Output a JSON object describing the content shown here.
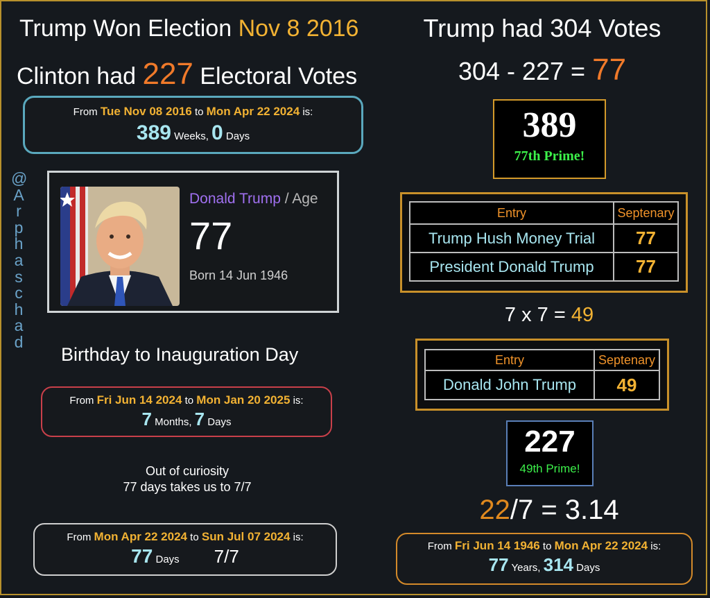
{
  "left": {
    "title1_prefix": "Trump Won Election ",
    "title1_date": "Nov 8 2016",
    "title2_prefix": "Clinton had ",
    "title2_num": "227",
    "title2_suffix": " Electoral Votes",
    "box1": {
      "from": "From ",
      "d1": "Tue Nov 08 2016",
      "to": " to ",
      "d2": "Mon Apr 22 2024",
      "is": " is:",
      "n1": "389",
      "u1": " Weeks, ",
      "n2": "0",
      "u2": " Days"
    },
    "handle": [
      "@",
      "A",
      "r",
      "p",
      "h",
      "a",
      "s",
      "c",
      "h",
      "a",
      "d"
    ],
    "card": {
      "name": "Donald Trump",
      "sep": " / Age",
      "age": "77",
      "born": "Born 14 Jun 1946"
    },
    "heading": "Birthday to Inauguration Day",
    "box2": {
      "from": "From ",
      "d1": "Fri Jun 14 2024",
      "to": " to ",
      "d2": "Mon Jan 20 2025",
      "is": " is:",
      "n1": "7",
      "u1": " Months, ",
      "n2": "7",
      "u2": " Days"
    },
    "curiosity1": "Out of curiosity",
    "curiosity2": "77 days takes us to 7/7",
    "box3": {
      "from": "From ",
      "d1": "Mon Apr 22 2024",
      "to": " to ",
      "d2": "Sun Jul 07 2024",
      "is": " is:",
      "n1": "77",
      "u1": " Days",
      "extra": "7/7"
    }
  },
  "right": {
    "title1": "Trump had 304 Votes",
    "eq1_prefix": "304 - 227 = ",
    "eq1_result": "77",
    "prime1": {
      "num": "389",
      "label": "77th Prime!"
    },
    "table1": {
      "headers": [
        "Entry",
        "Septenary"
      ],
      "rows": [
        [
          "Trump Hush Money Trial",
          "77"
        ],
        [
          "President Donald Trump",
          "77"
        ]
      ]
    },
    "eq2_prefix": "7 x 7 = ",
    "eq2_result": "49",
    "table2": {
      "headers": [
        "Entry",
        "Septenary"
      ],
      "rows": [
        [
          "Donald John Trump",
          "49"
        ]
      ]
    },
    "prime2": {
      "num": "227",
      "label": "49th Prime!"
    },
    "eq3_a": "22",
    "eq3_b": "/7 = 3.14",
    "box4": {
      "from": "From ",
      "d1": "Fri Jun 14 1946",
      "to": " to ",
      "d2": "Mon Apr 22 2024",
      "is": " is:",
      "n1": "77",
      "u1": " Years, ",
      "n2": "314",
      "u2": " Days"
    }
  },
  "colors": {
    "gold": "#f2b233",
    "orange": "#f07a2a",
    "cyan": "#a8e6f0",
    "purple": "#a070f0",
    "green": "#3cf04a"
  }
}
